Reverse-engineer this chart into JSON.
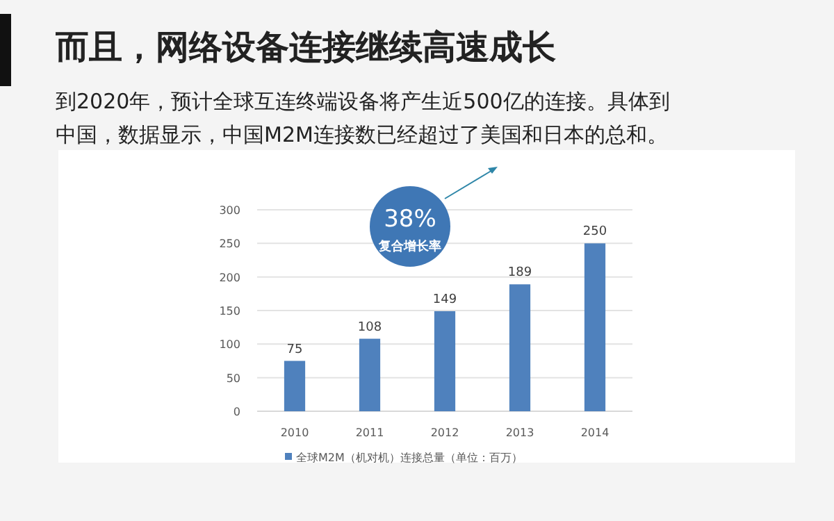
{
  "chart_data": {
    "type": "bar",
    "title": "而且，网络设备连接继续高速成长",
    "subtitle": "到2020年，预计全球互连终端设备将产生近500亿的连接。具体到中国，数据显示，中国M2M连接数已经超过了美国和日本的总和。",
    "categories": [
      "2010",
      "2011",
      "2012",
      "2013",
      "2014"
    ],
    "series": [
      {
        "name": "全球M2M（机对机）连接总量（单位：百万）",
        "color": "#4f81bd",
        "values": [
          75,
          108,
          149,
          189,
          250
        ]
      }
    ],
    "ylim": [
      0,
      300
    ],
    "yticks": [
      0,
      50,
      100,
      150,
      200,
      250,
      300
    ],
    "grid": "y",
    "legend": "bottom",
    "data_labels": true,
    "annotations": [
      "38%",
      "复合增长率"
    ]
  }
}
